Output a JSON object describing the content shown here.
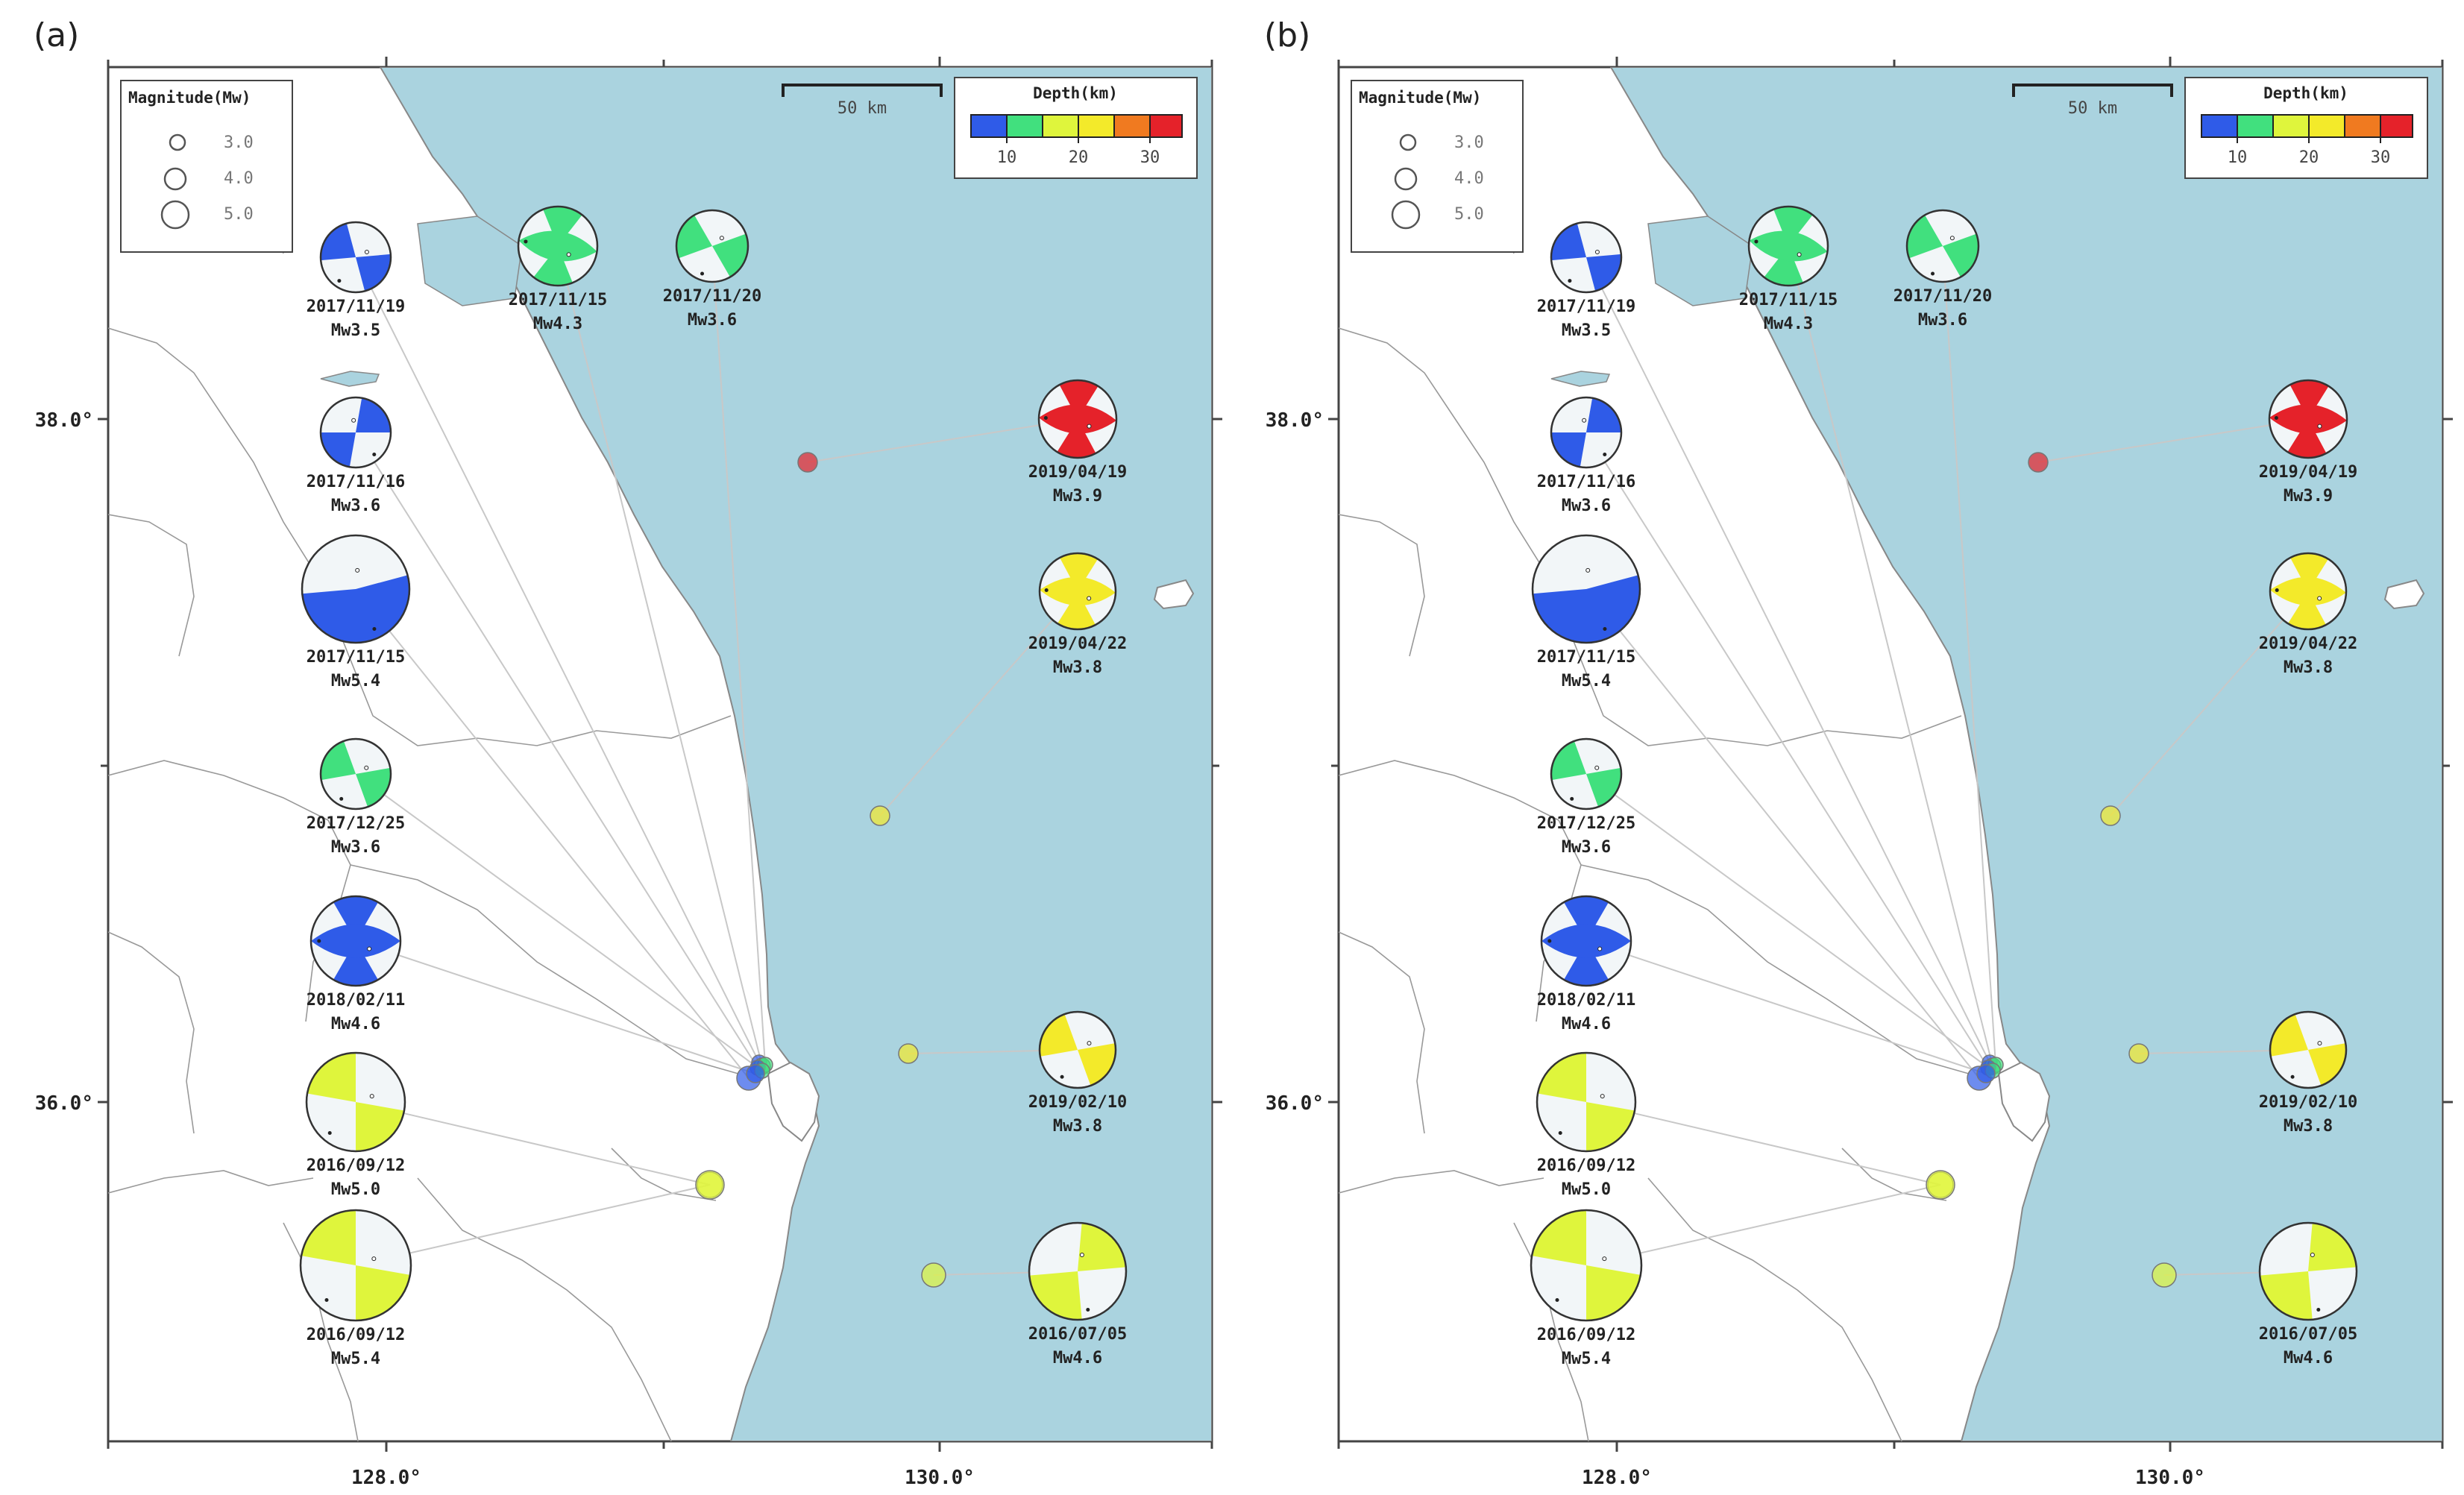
{
  "panels": [
    {
      "id": "a",
      "label": "(a)",
      "axes": {
        "x_ticks": [
          {
            "value": 128.0,
            "label": "128.0°"
          },
          {
            "value": 130.0,
            "label": "130.0°"
          }
        ],
        "y_ticks": [
          {
            "value": 38.0,
            "label": "38.0°"
          },
          {
            "value": 36.0,
            "label": "36.0°"
          }
        ]
      },
      "scale_bar": {
        "label": "50 km"
      },
      "magnitude_legend": {
        "title": "Magnitude(Mw)",
        "entries": [
          "3.0",
          "4.0",
          "5.0"
        ]
      },
      "depth_legend": {
        "title": "Depth(km)",
        "tick_labels": [
          "10",
          "20",
          "30"
        ],
        "colors": [
          "#2f5be8",
          "#41e07e",
          "#dff53c",
          "#f3ea2a",
          "#f07a20",
          "#e5222a"
        ]
      },
      "events": [
        {
          "date": "2017/11/19",
          "mag": "Mw3.5",
          "depth_color": "#2f5be8"
        },
        {
          "date": "2017/11/15",
          "mag": "Mw4.3",
          "depth_color": "#41e07e"
        },
        {
          "date": "2017/11/20",
          "mag": "Mw3.6",
          "depth_color": "#41e07e"
        },
        {
          "date": "2017/11/16",
          "mag": "Mw3.6",
          "depth_color": "#2f5be8"
        },
        {
          "date": "2017/11/15",
          "mag": "Mw5.4",
          "depth_color": "#2f5be8"
        },
        {
          "date": "2017/12/25",
          "mag": "Mw3.6",
          "depth_color": "#41e07e"
        },
        {
          "date": "2018/02/11",
          "mag": "Mw4.6",
          "depth_color": "#2f5be8"
        },
        {
          "date": "2016/09/12",
          "mag": "Mw5.0",
          "depth_color": "#dff53c"
        },
        {
          "date": "2016/09/12",
          "mag": "Mw5.4",
          "depth_color": "#dff53c"
        },
        {
          "date": "2019/04/19",
          "mag": "Mw3.9",
          "depth_color": "#e5222a"
        },
        {
          "date": "2019/04/22",
          "mag": "Mw3.8",
          "depth_color": "#f3ea2a"
        },
        {
          "date": "2019/02/10",
          "mag": "Mw3.8",
          "depth_color": "#f3ea2a"
        },
        {
          "date": "2016/07/05",
          "mag": "Mw4.6",
          "depth_color": "#dff53c"
        }
      ]
    },
    {
      "id": "b",
      "label": "(b)",
      "axes": {
        "x_ticks": [
          {
            "value": 128.0,
            "label": "128.0°"
          },
          {
            "value": 130.0,
            "label": "130.0°"
          }
        ],
        "y_ticks": [
          {
            "value": 38.0,
            "label": "38.0°"
          },
          {
            "value": 36.0,
            "label": "36.0°"
          }
        ]
      },
      "scale_bar": {
        "label": "50 km"
      },
      "magnitude_legend": {
        "title": "Magnitude(Mw)",
        "entries": [
          "3.0",
          "4.0",
          "5.0"
        ]
      },
      "depth_legend": {
        "title": "Depth(km)",
        "tick_labels": [
          "10",
          "20",
          "30"
        ],
        "colors": [
          "#2f5be8",
          "#41e07e",
          "#dff53c",
          "#f3ea2a",
          "#f07a20",
          "#e5222a"
        ]
      },
      "events": [
        {
          "date": "2017/11/19",
          "mag": "Mw3.5",
          "depth_color": "#2f5be8"
        },
        {
          "date": "2017/11/15",
          "mag": "Mw4.3",
          "depth_color": "#41e07e"
        },
        {
          "date": "2017/11/20",
          "mag": "Mw3.6",
          "depth_color": "#41e07e"
        },
        {
          "date": "2017/11/16",
          "mag": "Mw3.6",
          "depth_color": "#2f5be8"
        },
        {
          "date": "2017/11/15",
          "mag": "Mw5.4",
          "depth_color": "#2f5be8"
        },
        {
          "date": "2017/12/25",
          "mag": "Mw3.6",
          "depth_color": "#41e07e"
        },
        {
          "date": "2018/02/11",
          "mag": "Mw4.6",
          "depth_color": "#2f5be8"
        },
        {
          "date": "2016/09/12",
          "mag": "Mw5.0",
          "depth_color": "#dff53c"
        },
        {
          "date": "2016/09/12",
          "mag": "Mw5.4",
          "depth_color": "#dff53c"
        },
        {
          "date": "2019/04/19",
          "mag": "Mw3.9",
          "depth_color": "#e5222a"
        },
        {
          "date": "2019/04/22",
          "mag": "Mw3.8",
          "depth_color": "#f3ea2a"
        },
        {
          "date": "2019/02/10",
          "mag": "Mw3.8",
          "depth_color": "#f3ea2a"
        },
        {
          "date": "2016/07/05",
          "mag": "Mw4.6",
          "depth_color": "#dff53c"
        }
      ]
    }
  ],
  "style": {
    "sea_color": "#aad3df",
    "land_color": "#ffffff",
    "leader_color": "#c8c8c8"
  }
}
